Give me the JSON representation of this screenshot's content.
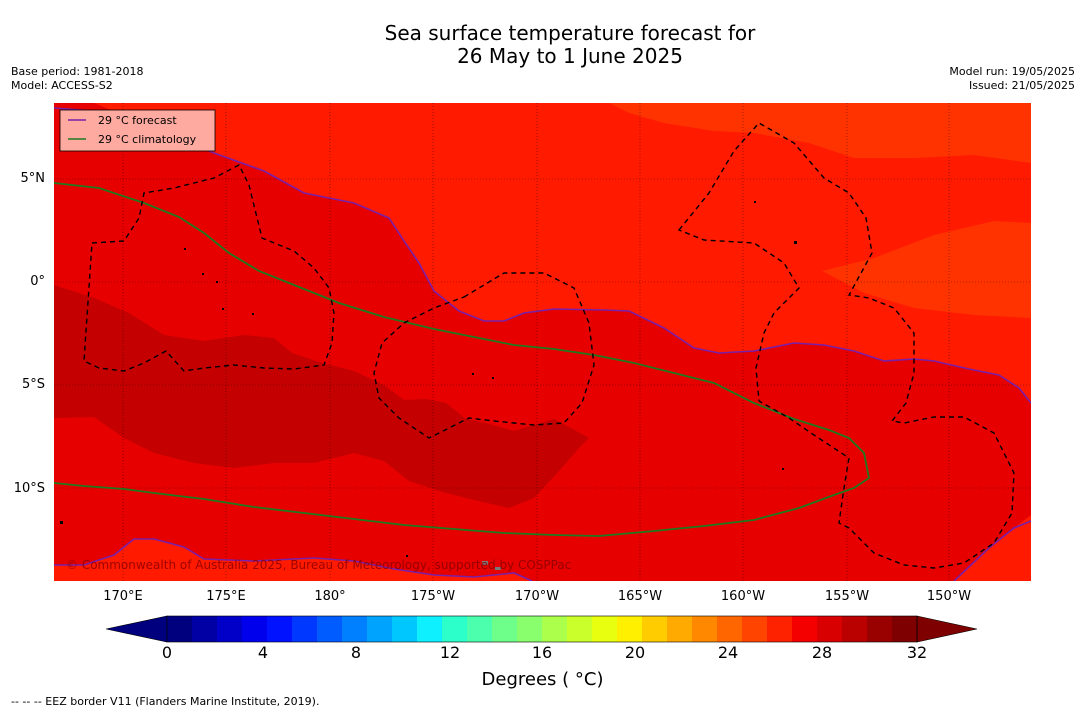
{
  "title": {
    "line1": "Sea surface temperature forecast for",
    "line2": "26 May to 1 June 2025"
  },
  "meta_left": {
    "base_period": "Base period: 1981-2018",
    "model": "Model: ACCESS-S2"
  },
  "meta_right": {
    "model_run": "Model run: 19/05/2025",
    "issued": "Issued: 21/05/2025"
  },
  "legend": {
    "forecast_label": "29 °C  forecast",
    "climatology_label": "29 °C  climatology",
    "forecast_color": "#7a1fa8",
    "climatology_color": "#1f7a1f",
    "background": "#ffaaa0"
  },
  "map": {
    "lat_labels": [
      "5°N",
      "0°",
      "5°S",
      "10°S"
    ],
    "lon_labels": [
      "170°E",
      "175°E",
      "180°",
      "175°W",
      "170°W",
      "165°W",
      "160°W",
      "155°W",
      "150°W"
    ],
    "credit": "© Commonwealth of Australia 2025, Bureau of Meteorology, supported by COSPPac",
    "colors": {
      "sst_27_28": "#ff3300",
      "sst_28_29": "#ff1a00",
      "sst_29_30": "#e60000",
      "sst_30_31": "#c40000"
    }
  },
  "colorbar": {
    "tick_labels": [
      "0",
      "4",
      "8",
      "12",
      "16",
      "20",
      "24",
      "28",
      "32"
    ],
    "units": "Degrees ( °C)",
    "colors": [
      "#00007f",
      "#0000a4",
      "#0000c8",
      "#0000ed",
      "#0012ff",
      "#0038ff",
      "#005cff",
      "#0080ff",
      "#00a4ff",
      "#00c8ff",
      "#0ff0ff",
      "#2cffca",
      "#4bffac",
      "#6dff8a",
      "#8aff6d",
      "#acff4b",
      "#caff2c",
      "#e8ff0f",
      "#fff000",
      "#ffcc00",
      "#ffaa00",
      "#ff8800",
      "#ff6600",
      "#ff4400",
      "#ff2200",
      "#f40000",
      "#d80000",
      "#bb0000",
      "#990000",
      "#7f0000"
    ],
    "under_color": "#00007f",
    "over_color": "#7f0000"
  },
  "footer": "--  --  -- EEZ border V11 (Flanders Marine Institute, 2019)."
}
